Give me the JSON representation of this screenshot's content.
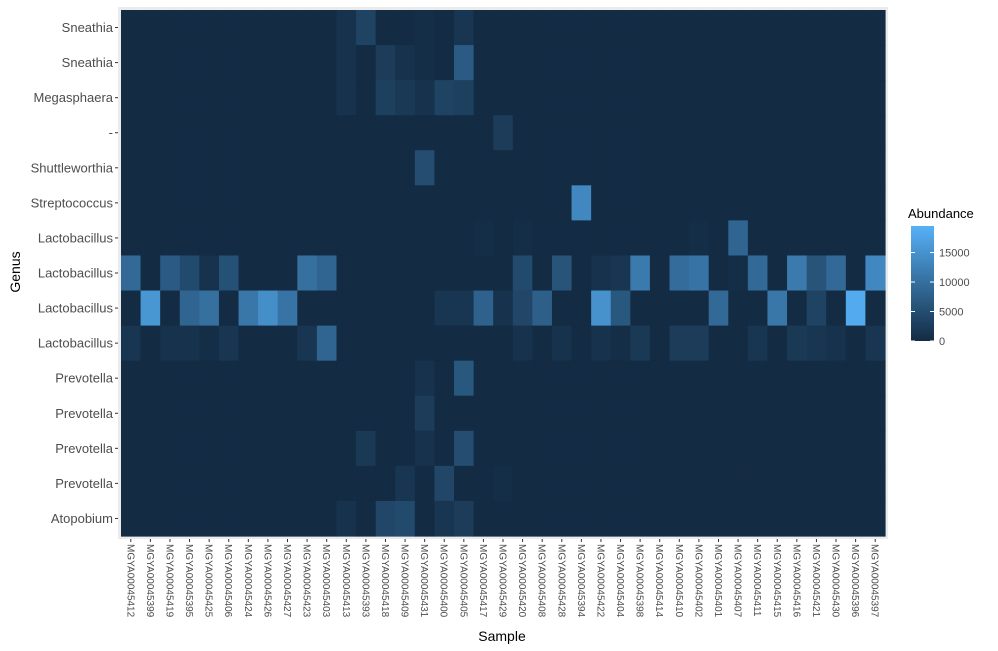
{
  "chart_data": {
    "type": "heatmap",
    "xlabel": "Sample",
    "ylabel": "Genus",
    "x": [
      "MGYA00045412",
      "MGYA00045399",
      "MGYA00045419",
      "MGYA00045395",
      "MGYA00045425",
      "MGYA00045406",
      "MGYA00045424",
      "MGYA00045426",
      "MGYA00045427",
      "MGYA00045423",
      "MGYA00045403",
      "MGYA00045413",
      "MGYA00045393",
      "MGYA00045418",
      "MGYA00045409",
      "MGYA00045431",
      "MGYA00045400",
      "MGYA00045405",
      "MGYA00045417",
      "MGYA00045429",
      "MGYA00045420",
      "MGYA00045408",
      "MGYA00045428",
      "MGYA00045394",
      "MGYA00045422",
      "MGYA00045404",
      "MGYA00045398",
      "MGYA00045414",
      "MGYA00045410",
      "MGYA00045402",
      "MGYA00045401",
      "MGYA00045407",
      "MGYA00045411",
      "MGYA00045415",
      "MGYA00045416",
      "MGYA00045421",
      "MGYA00045430",
      "MGYA00045396",
      "MGYA00045397"
    ],
    "y": [
      "Sneathia",
      "Sneathia",
      "Megasphaera",
      "-",
      "Shuttleworthia",
      "Streptococcus",
      "Lactobacillus",
      "Lactobacillus",
      "Lactobacillus",
      "Lactobacillus",
      "Prevotella",
      "Prevotella",
      "Prevotella",
      "Prevotella",
      "Atopobium"
    ],
    "values": [
      [
        0,
        0,
        0,
        0,
        0,
        0,
        0,
        0,
        0,
        0,
        0,
        1000,
        3500,
        0,
        0,
        500,
        0,
        1500,
        0,
        0,
        0,
        0,
        0,
        0,
        0,
        0,
        0,
        0,
        0,
        0,
        0,
        0,
        0,
        0,
        0,
        0,
        0,
        0,
        0
      ],
      [
        0,
        0,
        0,
        0,
        0,
        0,
        0,
        0,
        0,
        0,
        0,
        1000,
        0,
        2500,
        1000,
        500,
        0,
        7000,
        0,
        0,
        0,
        0,
        0,
        0,
        0,
        0,
        0,
        0,
        0,
        0,
        0,
        0,
        0,
        0,
        0,
        0,
        0,
        0,
        0
      ],
      [
        0,
        0,
        0,
        0,
        0,
        0,
        0,
        0,
        0,
        0,
        0,
        1000,
        0,
        3000,
        2000,
        1000,
        3500,
        3000,
        0,
        0,
        0,
        0,
        0,
        0,
        0,
        0,
        0,
        0,
        0,
        0,
        0,
        0,
        0,
        0,
        0,
        0,
        0,
        0,
        0
      ],
      [
        0,
        0,
        0,
        0,
        0,
        0,
        0,
        0,
        0,
        0,
        0,
        0,
        0,
        0,
        0,
        0,
        0,
        0,
        0,
        2500,
        0,
        0,
        0,
        0,
        0,
        0,
        0,
        0,
        0,
        0,
        0,
        0,
        0,
        0,
        0,
        0,
        0,
        0,
        0,
        0
      ],
      [
        0,
        0,
        0,
        0,
        0,
        0,
        0,
        0,
        0,
        0,
        0,
        0,
        0,
        0,
        0,
        5000,
        0,
        0,
        0,
        0,
        0,
        0,
        0,
        0,
        0,
        0,
        0,
        0,
        0,
        0,
        0,
        0,
        0,
        0,
        0,
        0,
        0,
        0,
        0
      ],
      [
        0,
        0,
        0,
        0,
        0,
        0,
        0,
        0,
        0,
        0,
        0,
        0,
        0,
        0,
        0,
        0,
        0,
        0,
        0,
        0,
        0,
        0,
        0,
        13500,
        0,
        0,
        0,
        0,
        0,
        0,
        0,
        0,
        0,
        0,
        0,
        0,
        0,
        0,
        0
      ],
      [
        0,
        0,
        0,
        0,
        0,
        0,
        0,
        0,
        0,
        0,
        0,
        0,
        0,
        0,
        0,
        0,
        0,
        0,
        500,
        0,
        500,
        0,
        0,
        0,
        0,
        0,
        0,
        0,
        0,
        500,
        0,
        8500,
        0,
        0,
        0,
        0,
        0,
        0,
        0
      ],
      [
        9000,
        0,
        7000,
        4500,
        1000,
        5500,
        0,
        0,
        0,
        10000,
        8500,
        0,
        0,
        0,
        0,
        0,
        0,
        0,
        0,
        0,
        4500,
        0,
        6000,
        0,
        1000,
        1500,
        11500,
        0,
        9500,
        10500,
        0,
        500,
        9000,
        0,
        11500,
        6000,
        9000,
        0,
        13500
      ],
      [
        0,
        15500,
        0,
        8500,
        10000,
        0,
        11000,
        14500,
        10500,
        0,
        0,
        0,
        0,
        0,
        0,
        0,
        1500,
        1500,
        8000,
        1000,
        4000,
        7500,
        0,
        0,
        15000,
        6500,
        0,
        0,
        0,
        0,
        9000,
        0,
        0,
        11000,
        0,
        3500,
        0,
        18500,
        0
      ],
      [
        1500,
        0,
        1000,
        1000,
        500,
        1500,
        0,
        0,
        0,
        1500,
        8500,
        0,
        0,
        0,
        0,
        0,
        0,
        0,
        0,
        0,
        1000,
        0,
        1000,
        0,
        1000,
        500,
        2000,
        0,
        2500,
        2500,
        0,
        0,
        1500,
        0,
        2000,
        1500,
        1000,
        0,
        1500
      ],
      [
        0,
        0,
        0,
        0,
        0,
        0,
        0,
        0,
        0,
        0,
        0,
        0,
        0,
        0,
        0,
        1000,
        0,
        6500,
        0,
        0,
        0,
        0,
        0,
        0,
        0,
        0,
        0,
        0,
        0,
        0,
        0,
        0,
        0,
        0,
        0,
        0,
        0,
        0,
        0
      ],
      [
        0,
        0,
        0,
        0,
        0,
        0,
        0,
        0,
        0,
        0,
        0,
        0,
        0,
        0,
        0,
        2500,
        0,
        0,
        0,
        0,
        0,
        0,
        0,
        0,
        0,
        0,
        0,
        0,
        0,
        0,
        0,
        0,
        0,
        0,
        0,
        0,
        0,
        0,
        0
      ],
      [
        0,
        0,
        0,
        0,
        0,
        0,
        0,
        0,
        0,
        0,
        0,
        0,
        2000,
        0,
        0,
        1000,
        0,
        5000,
        0,
        0,
        0,
        0,
        0,
        0,
        0,
        0,
        0,
        0,
        0,
        0,
        0,
        0,
        0,
        0,
        0,
        0,
        0,
        0,
        0
      ],
      [
        0,
        0,
        0,
        0,
        0,
        0,
        0,
        0,
        0,
        0,
        0,
        0,
        0,
        0,
        1500,
        0,
        4000,
        0,
        0,
        500,
        0,
        0,
        0,
        0,
        0,
        0,
        0,
        0,
        0,
        0,
        0,
        0,
        0,
        0,
        0,
        0,
        0,
        0,
        0
      ],
      [
        0,
        0,
        0,
        0,
        0,
        0,
        0,
        0,
        0,
        0,
        0,
        1000,
        0,
        4000,
        4500,
        0,
        1500,
        2500,
        0,
        0,
        0,
        0,
        0,
        0,
        0,
        0,
        0,
        0,
        0,
        0,
        0,
        0,
        0,
        0,
        0,
        0,
        0,
        0,
        0
      ]
    ],
    "colorscale": {
      "low": "#132B43",
      "high": "#56B1F7",
      "min": 0,
      "max": 19500
    },
    "legend": {
      "title": "Abundance",
      "ticks": [
        0,
        5000,
        10000,
        15000
      ],
      "position": "right"
    },
    "grid": false
  }
}
